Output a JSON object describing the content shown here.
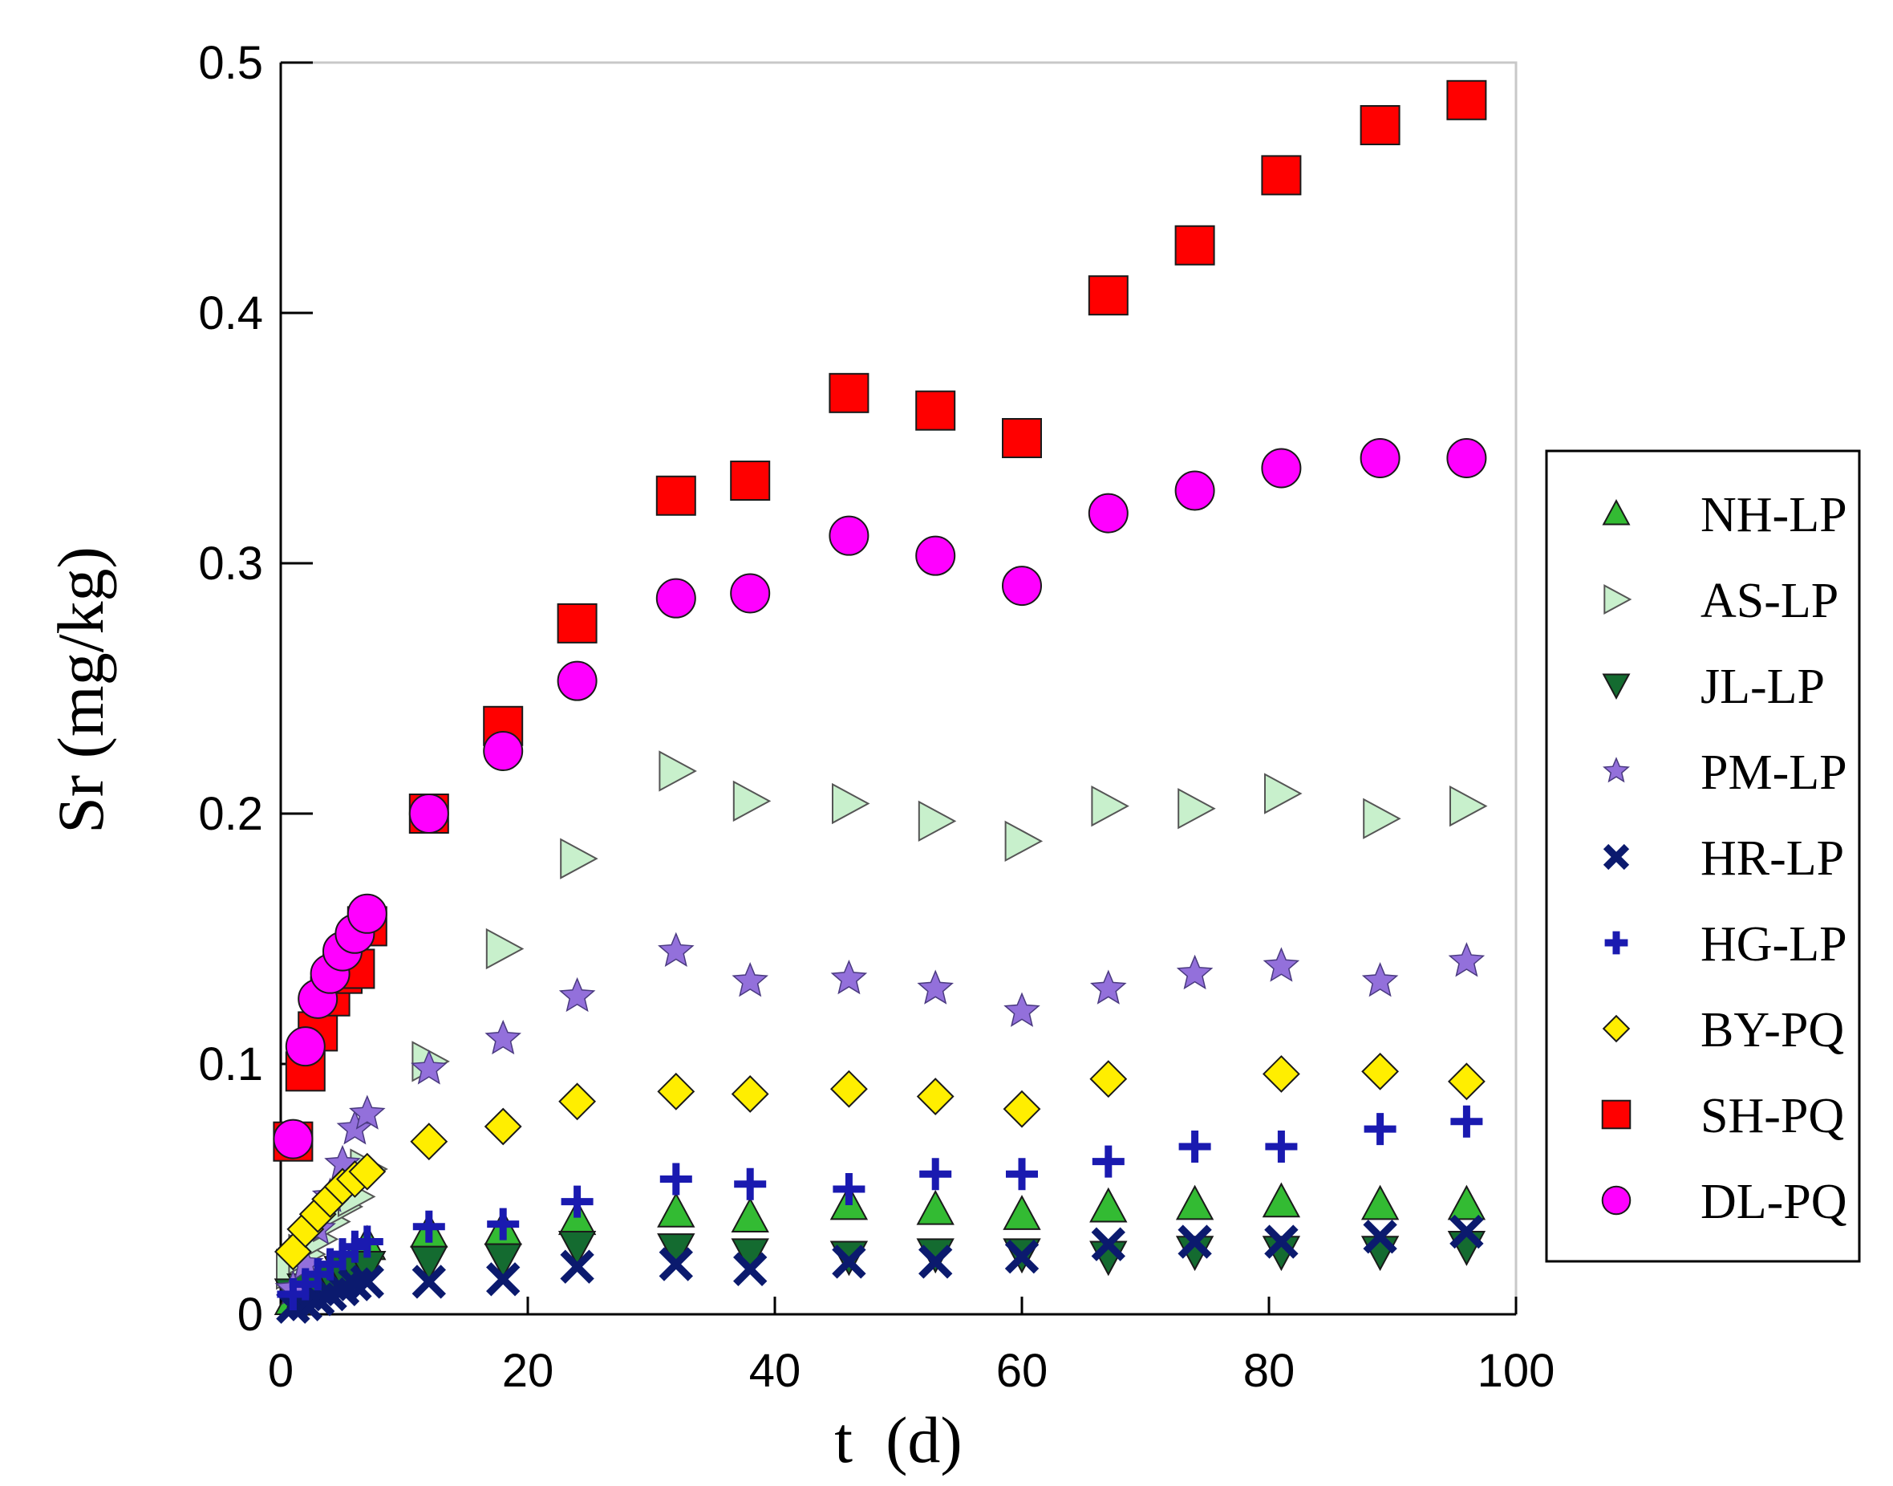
{
  "chart_data": {
    "type": "scatter",
    "title": "",
    "xlabel": "t  (d)",
    "ylabel": "Sr (mg/kg)",
    "xlim": [
      0,
      100
    ],
    "ylim": [
      0,
      0.5
    ],
    "xticks": [
      "0",
      "20",
      "40",
      "60",
      "80",
      "100"
    ],
    "yticks": [
      "0",
      "0.1",
      "0.2",
      "0.3",
      "0.4",
      "0.5"
    ],
    "grid": false,
    "legend_position": "right",
    "x": [
      1,
      2,
      3,
      4,
      5,
      6,
      7,
      12,
      18,
      24,
      32,
      38,
      46,
      53,
      60,
      67,
      74,
      81,
      89,
      96
    ],
    "series": [
      {
        "name": "NH-LP",
        "marker": "triangle-up",
        "color": "#33bb33",
        "values": [
          0.006,
          0.009,
          0.012,
          0.016,
          0.019,
          0.023,
          0.028,
          0.033,
          0.034,
          0.038,
          0.041,
          0.039,
          0.044,
          0.042,
          0.04,
          0.043,
          0.044,
          0.045,
          0.044,
          0.044
        ]
      },
      {
        "name": "AS-LP",
        "marker": "triangle-right",
        "color": "#c8f0cc",
        "values": [
          0.018,
          0.024,
          0.03,
          0.037,
          0.043,
          0.047,
          0.058,
          0.101,
          0.146,
          0.182,
          0.217,
          0.205,
          0.204,
          0.197,
          0.189,
          0.203,
          0.202,
          0.208,
          0.198,
          0.203
        ]
      },
      {
        "name": "JL-LP",
        "marker": "triangle-down",
        "color": "#146b30",
        "values": [
          0.008,
          0.01,
          0.012,
          0.015,
          0.017,
          0.018,
          0.019,
          0.021,
          0.022,
          0.027,
          0.026,
          0.024,
          0.023,
          0.024,
          0.024,
          0.023,
          0.025,
          0.025,
          0.025,
          0.027
        ]
      },
      {
        "name": "PM-LP",
        "marker": "star",
        "color": "#9370db",
        "values": [
          0.01,
          0.02,
          0.034,
          0.047,
          0.06,
          0.074,
          0.08,
          0.098,
          0.11,
          0.127,
          0.145,
          0.133,
          0.134,
          0.13,
          0.121,
          0.13,
          0.136,
          0.139,
          0.133,
          0.141
        ]
      },
      {
        "name": "HR-LP",
        "marker": "x",
        "color": "#0b1a6e",
        "values": [
          0.003,
          0.004,
          0.006,
          0.008,
          0.01,
          0.012,
          0.013,
          0.013,
          0.014,
          0.019,
          0.02,
          0.018,
          0.021,
          0.021,
          0.023,
          0.028,
          0.029,
          0.029,
          0.031,
          0.033
        ]
      },
      {
        "name": "HG-LP",
        "marker": "plus",
        "color": "#1a1ab0",
        "values": [
          0.008,
          0.012,
          0.016,
          0.02,
          0.024,
          0.027,
          0.029,
          0.035,
          0.036,
          0.045,
          0.054,
          0.052,
          0.05,
          0.056,
          0.056,
          0.061,
          0.067,
          0.067,
          0.074,
          0.077
        ]
      },
      {
        "name": "BY-PQ",
        "marker": "diamond",
        "color": "#ffee00",
        "values": [
          0.025,
          0.034,
          0.04,
          0.046,
          0.051,
          0.054,
          0.057,
          0.069,
          0.075,
          0.085,
          0.089,
          0.088,
          0.09,
          0.087,
          0.082,
          0.094,
          null,
          0.096,
          0.097,
          0.093
        ]
      },
      {
        "name": "SH-PQ",
        "marker": "square",
        "color": "#ff0000",
        "values": [
          0.069,
          0.097,
          0.113,
          0.127,
          0.136,
          0.138,
          0.155,
          0.2,
          0.235,
          0.276,
          0.327,
          0.333,
          0.368,
          0.361,
          0.35,
          0.407,
          0.427,
          0.455,
          0.475,
          0.485
        ]
      },
      {
        "name": "DL-PQ",
        "marker": "circle",
        "color": "#ff00ff",
        "values": [
          0.07,
          0.107,
          0.126,
          0.136,
          0.145,
          0.152,
          0.16,
          0.2,
          0.225,
          0.253,
          0.286,
          0.288,
          0.311,
          0.303,
          0.291,
          0.32,
          0.329,
          0.338,
          0.342,
          0.342
        ]
      }
    ]
  }
}
